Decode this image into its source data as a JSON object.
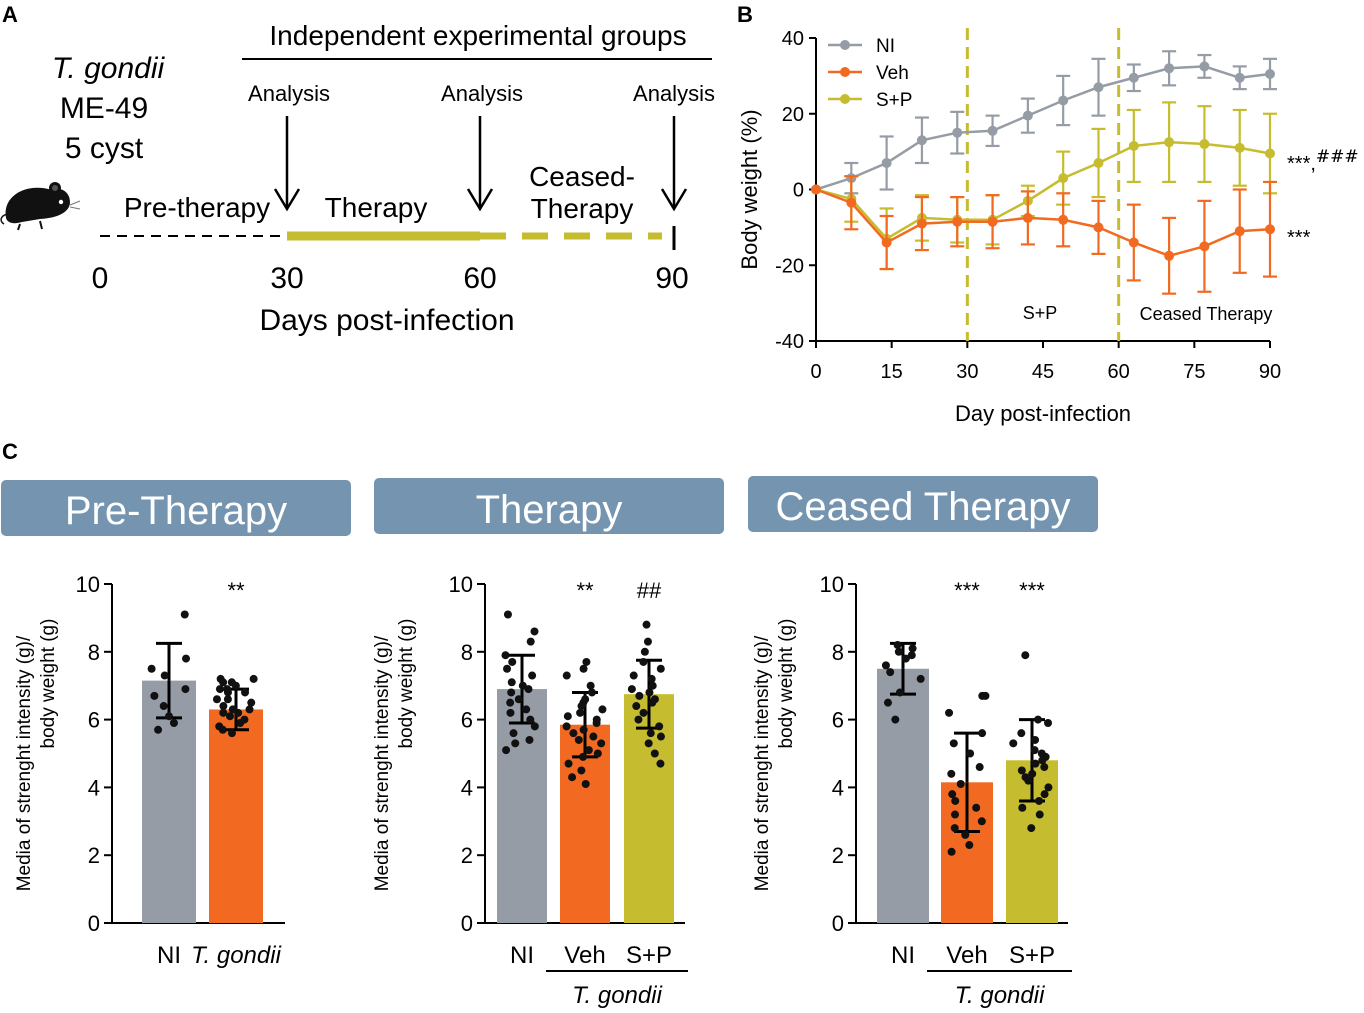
{
  "colors": {
    "ni": "#959ca5",
    "veh": "#f26a21",
    "sp": "#c5bd2f",
    "banner": "#7494b0",
    "axis": "#000000"
  },
  "panel_a": {
    "letter": "A",
    "parasite_name": "T. gondii",
    "strain": "ME-49",
    "dose": "5 cyst",
    "header": "Independent experimental groups",
    "analysis_labels": [
      "Analysis",
      "Analysis",
      "Analysis"
    ],
    "phase_labels": [
      "Pre-therapy",
      "Therapy",
      "Ceased-",
      "Therapy"
    ],
    "day_ticks": [
      "0",
      "30",
      "60",
      "90"
    ],
    "xlabel": "Days post-infection",
    "mouse_icon": "mouse-icon"
  },
  "panel_b": {
    "letter": "B",
    "region_labels": [
      "S+P",
      "Ceased Therapy"
    ],
    "veh_signif": "***",
    "sp_signif": "***",
    "sp_signif_sep": ",",
    "sp_signif_hash": "###"
  },
  "panel_c": {
    "letter": "C",
    "banners": [
      "Pre-Therapy",
      "Therapy",
      "Ceased Therapy"
    ],
    "ylabel_line1": "Media of strenght intensity (g)/",
    "ylabel_line2": "body weight (g)",
    "group_caption": "T. gondii"
  },
  "chart_data": [
    {
      "id": "body-weight",
      "type": "line",
      "title": "",
      "xlabel": "Day post-infection",
      "ylabel": "Body weight (%)",
      "xlim": [
        0,
        90
      ],
      "ylim": [
        -40,
        40
      ],
      "xticks": [
        0,
        15,
        30,
        45,
        60,
        75,
        90
      ],
      "yticks": [
        -40,
        -20,
        0,
        20,
        40
      ],
      "x": [
        0,
        7,
        14,
        21,
        28,
        35,
        42,
        49,
        56,
        63,
        70,
        77,
        84,
        90
      ],
      "vlines": [
        30,
        60
      ],
      "legend": "top-left",
      "series": [
        {
          "name": "NI",
          "color_key": "ni",
          "values": [
            0,
            3,
            7,
            13,
            15,
            15.5,
            19.5,
            23.5,
            27,
            29.5,
            32,
            32.5,
            29.5,
            30.5
          ],
          "errors": [
            0,
            4,
            7,
            6,
            5.5,
            4,
            4.5,
            6.5,
            7.5,
            3.5,
            4.5,
            3,
            3,
            4
          ]
        },
        {
          "name": "Veh",
          "color_key": "veh",
          "values": [
            0,
            -3.5,
            -14,
            -9,
            -8.5,
            -8.5,
            -7.5,
            -8,
            -10,
            -14,
            -17.5,
            -15,
            -11,
            -10.5
          ],
          "errors": [
            0,
            7,
            7,
            7,
            6.5,
            7,
            7,
            7,
            7,
            10,
            10,
            12,
            11,
            12.5
          ]
        },
        {
          "name": "S+P",
          "color_key": "sp",
          "values": [
            0,
            -2.5,
            -13,
            -7.5,
            -8,
            -8,
            -3,
            3,
            7,
            11.5,
            12.5,
            12,
            11,
            9.5
          ],
          "errors": [
            0,
            6,
            8,
            6,
            6,
            6.5,
            4,
            7,
            9,
            9.5,
            10.5,
            10,
            10,
            10.5
          ]
        }
      ]
    },
    {
      "id": "pre-therapy",
      "type": "bar",
      "title": "Pre-Therapy",
      "xlabel": "",
      "ylabel": "Media of strenght intensity (g)/ body weight (g)",
      "ylim": [
        0,
        10
      ],
      "yticks": [
        0,
        2,
        4,
        6,
        8,
        10
      ],
      "categories": [
        "NI",
        "T. gondii"
      ],
      "values": [
        7.15,
        6.3
      ],
      "sd": [
        1.1,
        0.6
      ],
      "significance": [
        "",
        "**"
      ],
      "category_italic": [
        false,
        true
      ],
      "color_keys": [
        "ni",
        "veh"
      ],
      "points": [
        [
          9.1,
          7.8,
          7.5,
          7.3,
          6.9,
          6.7,
          6.4,
          6.1,
          5.9,
          5.7
        ],
        [
          7.2,
          7.2,
          7.1,
          7.1,
          7.0,
          6.9,
          6.9,
          6.8,
          6.8,
          6.6,
          6.6,
          6.5,
          6.4,
          6.3,
          6.3,
          6.2,
          6.2,
          6.1,
          6.0,
          5.9,
          5.8,
          5.7,
          5.6
        ]
      ],
      "group_caption_indices": []
    },
    {
      "id": "therapy",
      "type": "bar",
      "title": "Therapy",
      "xlabel": "",
      "ylabel": "Media of strenght intensity (g)/ body weight (g)",
      "ylim": [
        0,
        10
      ],
      "yticks": [
        0,
        2,
        4,
        6,
        8,
        10
      ],
      "categories": [
        "NI",
        "Veh",
        "S+P"
      ],
      "values": [
        6.9,
        5.85,
        6.75
      ],
      "sd": [
        1.0,
        0.95,
        1.0
      ],
      "significance": [
        "",
        "**",
        "##"
      ],
      "category_italic": [
        false,
        false,
        false
      ],
      "color_keys": [
        "ni",
        "veh",
        "sp"
      ],
      "points": [
        [
          9.1,
          8.6,
          8.3,
          7.9,
          7.7,
          7.5,
          7.3,
          7.1,
          7.0,
          6.9,
          6.8,
          6.6,
          6.5,
          6.3,
          6.2,
          6.0,
          5.8,
          5.6,
          5.4,
          5.3,
          5.1
        ],
        [
          7.7,
          7.5,
          7.3,
          7.0,
          6.8,
          6.6,
          6.5,
          6.4,
          6.3,
          6.2,
          6.1,
          6.0,
          5.9,
          5.8,
          5.7,
          5.6,
          5.5,
          5.4,
          5.3,
          5.1,
          5.0,
          4.9,
          4.7,
          4.5,
          4.3,
          4.1
        ],
        [
          8.8,
          8.3,
          8.0,
          7.7,
          7.5,
          7.3,
          7.2,
          7.0,
          6.9,
          6.8,
          6.7,
          6.6,
          6.5,
          6.4,
          6.2,
          6.0,
          5.8,
          5.6,
          5.5,
          5.3,
          5.0,
          4.7
        ]
      ],
      "group_caption_indices": [
        1,
        2
      ]
    },
    {
      "id": "ceased-therapy",
      "type": "bar",
      "title": "Ceased Therapy",
      "xlabel": "",
      "ylabel": "Media of strenght intensity (g)/ body weight (g)",
      "ylim": [
        0,
        10
      ],
      "yticks": [
        0,
        2,
        4,
        6,
        8,
        10
      ],
      "categories": [
        "NI",
        "Veh",
        "S+P"
      ],
      "values": [
        7.5,
        4.15,
        4.8
      ],
      "sd": [
        0.75,
        1.45,
        1.2
      ],
      "significance": [
        "",
        "***",
        "***"
      ],
      "category_italic": [
        false,
        false,
        false
      ],
      "color_keys": [
        "ni",
        "veh",
        "sp"
      ],
      "points": [
        [
          8.2,
          8.1,
          8.0,
          7.9,
          7.8,
          7.6,
          7.4,
          7.2,
          6.8,
          6.5,
          6.0
        ],
        [
          6.7,
          6.7,
          6.2,
          5.6,
          5.3,
          5.0,
          4.6,
          4.4,
          4.1,
          3.8,
          3.6,
          3.4,
          3.2,
          3.0,
          2.8,
          2.6,
          2.3,
          2.1
        ],
        [
          7.9,
          6.0,
          5.9,
          5.6,
          5.4,
          5.3,
          5.1,
          5.0,
          4.9,
          4.8,
          4.7,
          4.6,
          4.5,
          4.4,
          4.3,
          4.2,
          4.0,
          3.8,
          3.6,
          3.4,
          3.2,
          2.8
        ]
      ],
      "group_caption_indices": [
        1,
        2
      ]
    }
  ]
}
